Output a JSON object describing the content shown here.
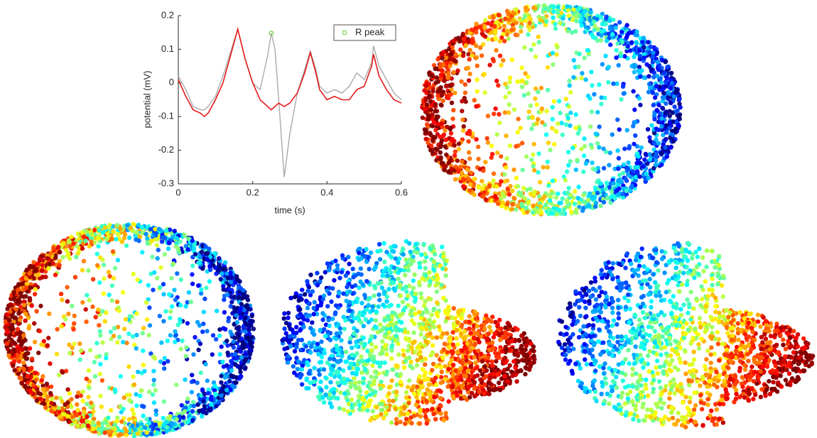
{
  "chart_data": {
    "type": "line",
    "xlabel": "time (s)",
    "ylabel": "potential (mV)",
    "x": [
      0,
      0.02,
      0.04,
      0.06,
      0.07,
      0.08,
      0.1,
      0.12,
      0.14,
      0.16,
      0.18,
      0.2,
      0.22,
      0.24,
      0.25,
      0.26,
      0.27,
      0.285,
      0.3,
      0.32,
      0.34,
      0.355,
      0.37,
      0.38,
      0.4,
      0.42,
      0.44,
      0.46,
      0.48,
      0.5,
      0.52,
      0.525,
      0.54,
      0.56,
      0.58,
      0.6
    ],
    "series": [
      {
        "color": "#aaaaaa",
        "values": [
          0.02,
          -0.02,
          -0.07,
          -0.08,
          -0.08,
          -0.07,
          -0.04,
          0.02,
          0.09,
          0.16,
          0.07,
          0.0,
          -0.02,
          0.08,
          0.148,
          0.1,
          -0.05,
          -0.28,
          -0.15,
          -0.03,
          0.04,
          0.095,
          0.04,
          -0.01,
          -0.03,
          -0.02,
          -0.03,
          -0.01,
          0.03,
          0.01,
          0.06,
          0.11,
          0.05,
          0.01,
          -0.03,
          -0.05
        ]
      },
      {
        "color": "#e41a1c",
        "values": [
          0.01,
          -0.04,
          -0.08,
          -0.09,
          -0.1,
          -0.09,
          -0.05,
          0.0,
          0.08,
          0.16,
          0.07,
          0.0,
          -0.05,
          -0.07,
          -0.08,
          -0.07,
          -0.06,
          -0.07,
          -0.06,
          -0.03,
          0.03,
          0.09,
          0.03,
          -0.02,
          -0.05,
          -0.04,
          -0.05,
          -0.05,
          -0.02,
          -0.01,
          0.05,
          0.085,
          0.02,
          -0.02,
          -0.05,
          -0.06
        ]
      }
    ],
    "markers": {
      "name": "R peak",
      "color": "#77cc44",
      "x": [
        0.25
      ],
      "values": [
        0.148
      ]
    },
    "xlim": [
      0,
      0.6
    ],
    "ylim": [
      -0.3,
      0.2
    ],
    "xticks": [
      0,
      0.2,
      0.4,
      0.6
    ],
    "yticks": [
      -0.3,
      -0.2,
      -0.1,
      0,
      0.1,
      0.2
    ],
    "legend": "upper right"
  }
}
